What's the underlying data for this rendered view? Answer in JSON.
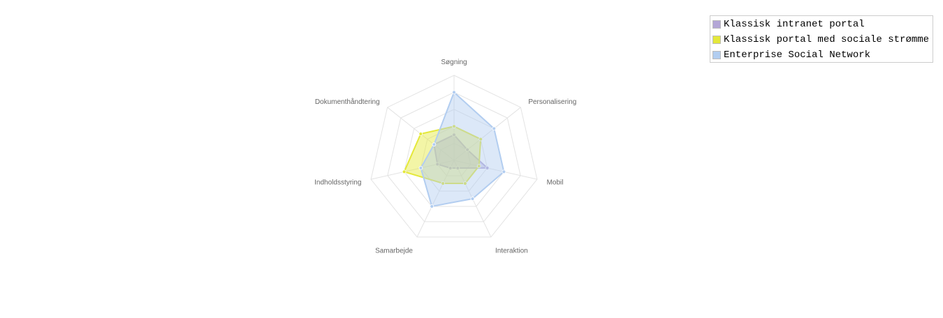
{
  "chart_data": {
    "type": "radar",
    "categories": [
      "Søgning",
      "Personalisering",
      "Mobil",
      "Interaktion",
      "Samarbejde",
      "Indholdsstyring",
      "Dokumenthåndtering"
    ],
    "rmax": 5,
    "grid": true,
    "legend_position": "top-right",
    "series": [
      {
        "name": "Klassisk intranet portal",
        "color": "#b3a6d6",
        "values": [
          1.5,
          1.0,
          2.0,
          0.5,
          0.5,
          1.0,
          1.5
        ]
      },
      {
        "name": "Klassisk portal med sociale strømme",
        "color": "#e4e83a",
        "values": [
          2.0,
          2.0,
          1.5,
          1.5,
          1.5,
          3.0,
          2.5
        ]
      },
      {
        "name": "Enterprise Social Network",
        "color": "#b2cdf0",
        "values": [
          4.0,
          3.0,
          3.0,
          2.5,
          3.0,
          2.0,
          1.5
        ]
      }
    ]
  }
}
